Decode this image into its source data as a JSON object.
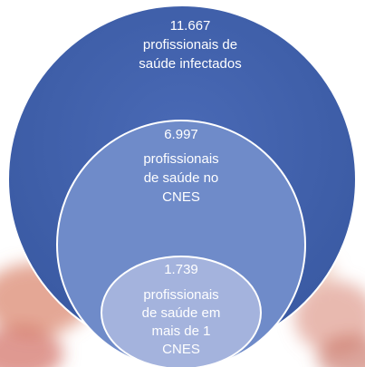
{
  "nodes": [
    {
      "value": "11.667",
      "label": "profissionais de saúde infectados"
    },
    {
      "value": "6.997",
      "label": "profissionais de saúde no CNES"
    },
    {
      "value": "1.739",
      "label": "profissionais de saúde em mais de 1 CNES"
    }
  ]
}
